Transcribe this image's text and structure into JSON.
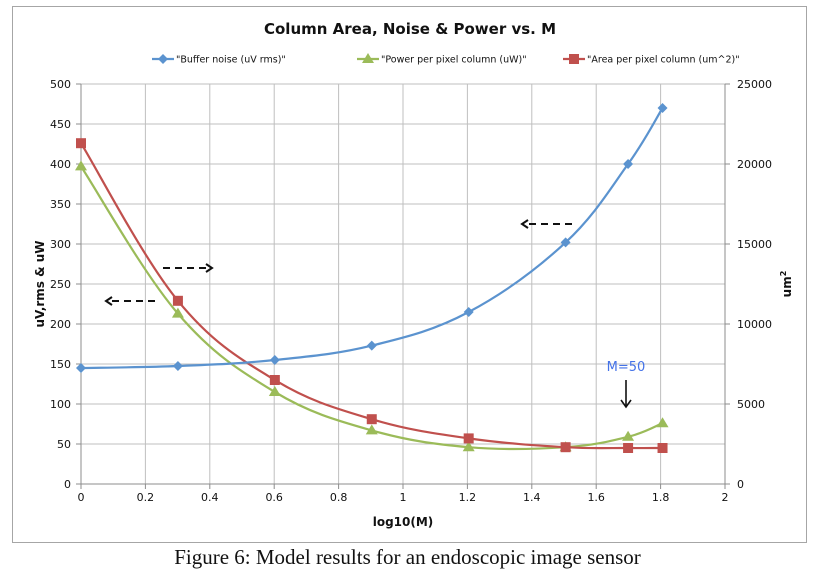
{
  "chart_data": {
    "type": "line",
    "title": "Column Area, Noise & Power vs. M",
    "xlabel": "log10(M)",
    "ylabel": "uV,rms & uW",
    "y2label": "um",
    "y2label_superscript": "2",
    "xlim": [
      0,
      2
    ],
    "ylim": [
      0,
      500
    ],
    "y2lim": [
      0,
      25000
    ],
    "xticks": [
      "0",
      "0.2",
      "0.4",
      "0.6",
      "0.8",
      "1",
      "1.2",
      "1.4",
      "1.6",
      "1.8",
      "2"
    ],
    "yticks": [
      "0",
      "50",
      "100",
      "150",
      "200",
      "250",
      "300",
      "350",
      "400",
      "450",
      "500"
    ],
    "y2ticks": [
      "0",
      "5000",
      "10000",
      "15000",
      "20000",
      "25000"
    ],
    "grid": true,
    "legend_position": "top",
    "series": [
      {
        "name": "\"Buffer noise (uV rms)\"",
        "axis": "left",
        "color": "#5b93cf",
        "marker": "diamond",
        "x": [
          0,
          0.301,
          0.602,
          0.903,
          1.204,
          1.505,
          1.699,
          1.806
        ],
        "values": [
          145,
          147.5,
          155,
          173,
          215,
          302,
          400,
          470
        ]
      },
      {
        "name": "\"Power per pixel column (uW)\"",
        "axis": "left",
        "color": "#9bbb59",
        "marker": "triangle",
        "x": [
          0,
          0.301,
          0.602,
          0.903,
          1.204,
          1.505,
          1.699,
          1.806
        ],
        "values": [
          397,
          213,
          115,
          67,
          46,
          46,
          59,
          76
        ]
      },
      {
        "name": "\"Area per pixel column (um^2)\"",
        "axis": "right",
        "color": "#c0504d",
        "marker": "square",
        "x": [
          0,
          0.301,
          0.602,
          0.903,
          1.204,
          1.505,
          1.699,
          1.806
        ],
        "values": [
          21300,
          11450,
          6500,
          4050,
          2850,
          2300,
          2250,
          2250
        ]
      }
    ],
    "annotations": [
      {
        "text": "M=50",
        "color": "#4472e8"
      }
    ]
  },
  "caption": "Figure 6: Model results for an endoscopic image sensor"
}
